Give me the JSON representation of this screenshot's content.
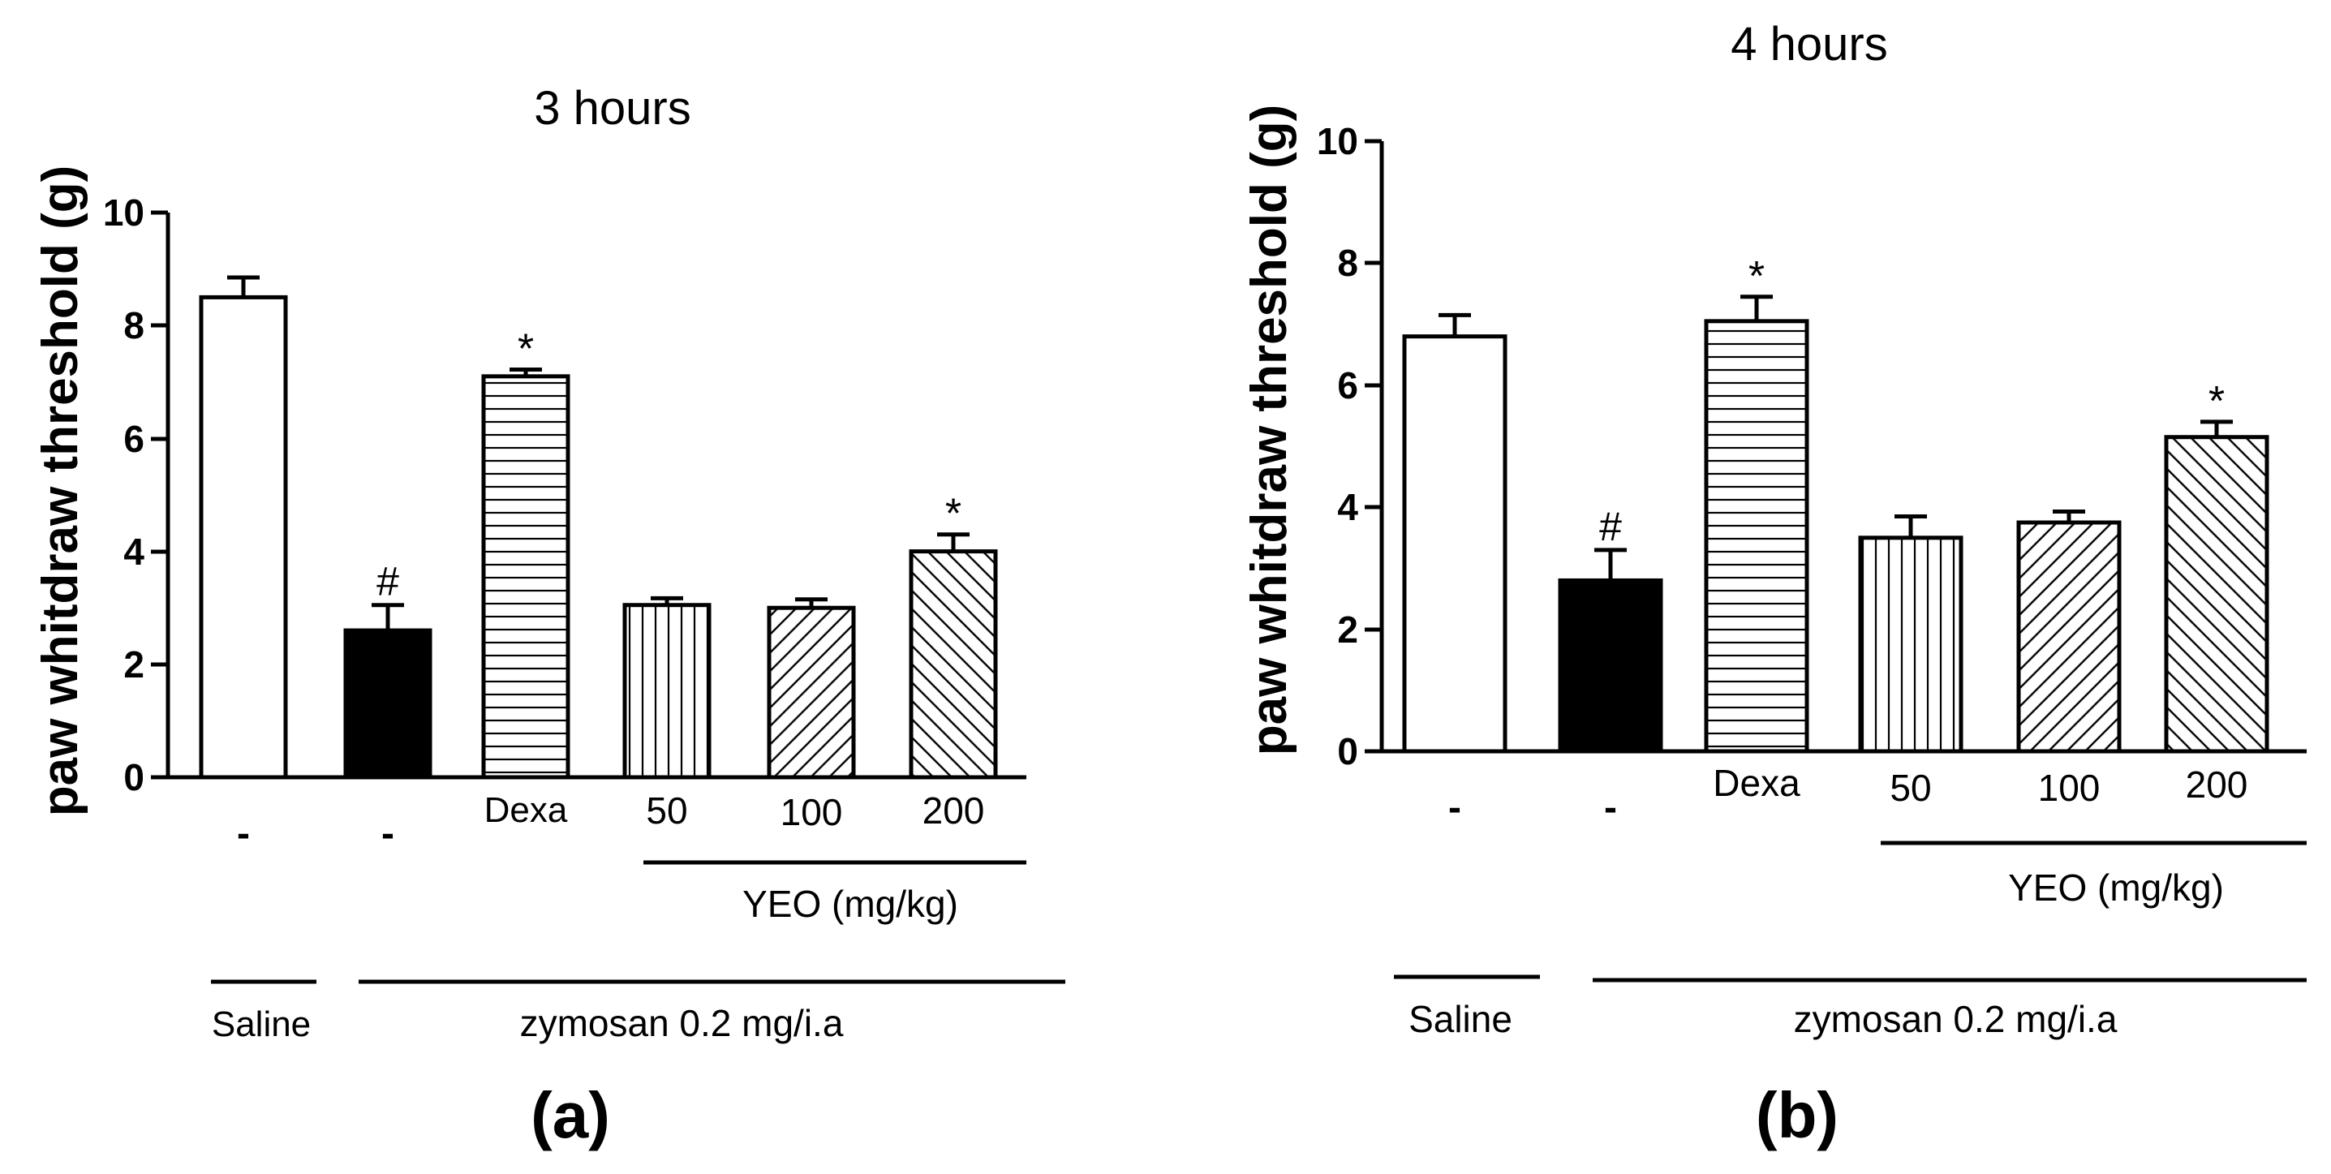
{
  "chart_data": [
    {
      "type": "bar",
      "panel_label": "(a)",
      "title": "3 hours",
      "ylabel": "paw whitdraw threshold (g)",
      "ylim": [
        0,
        10
      ],
      "yticks": [
        "0",
        "2",
        "4",
        "6",
        "8",
        "10"
      ],
      "categories": [
        "-",
        "-",
        "Dexa",
        "50",
        "100",
        "200"
      ],
      "values": [
        8.5,
        2.6,
        7.1,
        3.05,
        3.0,
        4.0
      ],
      "errors": [
        0.35,
        0.45,
        0.12,
        0.12,
        0.15,
        0.3
      ],
      "fills": [
        "white",
        "black",
        "hlines",
        "vlines",
        "diag-up",
        "diag-down"
      ],
      "annotations": [
        "",
        "#",
        "*",
        "",
        "",
        "*"
      ],
      "groups": {
        "yeo": "YEO (mg/kg)",
        "saline": "Saline",
        "zymosan": "zymosan 0.2 mg/i.a"
      }
    },
    {
      "type": "bar",
      "panel_label": "(b)",
      "title": "4 hours",
      "ylabel": "paw whitdraw threshold (g)",
      "ylim": [
        0,
        10
      ],
      "yticks": [
        "0",
        "2",
        "4",
        "6",
        "8",
        "10"
      ],
      "categories": [
        "-",
        "-",
        "Dexa",
        "50",
        "100",
        "200"
      ],
      "values": [
        6.8,
        2.8,
        7.05,
        3.5,
        3.75,
        5.15
      ],
      "errors": [
        0.35,
        0.5,
        0.4,
        0.35,
        0.18,
        0.25
      ],
      "fills": [
        "white",
        "black",
        "hlines",
        "vlines",
        "diag-up",
        "diag-down"
      ],
      "annotations": [
        "",
        "#",
        "*",
        "",
        "",
        "*"
      ],
      "groups": {
        "yeo": "YEO (mg/kg)",
        "saline": "Saline",
        "zymosan": "zymosan 0.2 mg/i.a"
      }
    }
  ]
}
